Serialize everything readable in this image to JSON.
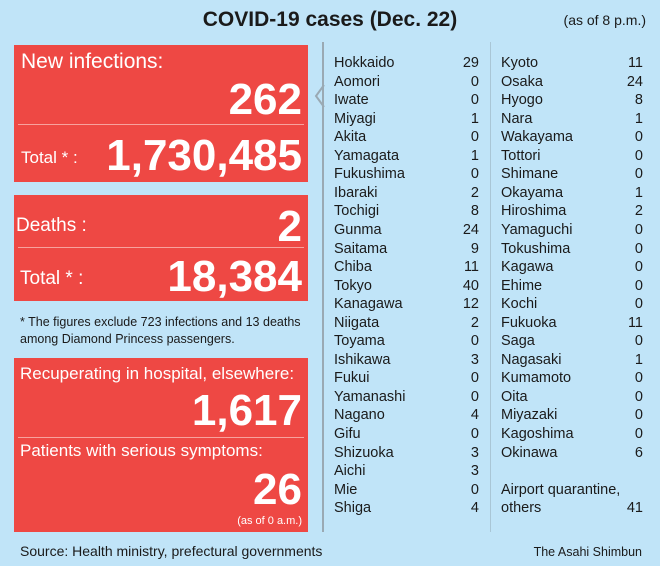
{
  "header": {
    "title": "COVID-19 cases (Dec. 22)",
    "as_of": "(as of 8 p.m.)"
  },
  "infections": {
    "label": "New infections:",
    "new": "262",
    "total_label": "Total * :",
    "total": "1,730,485"
  },
  "deaths": {
    "label": "Deaths :",
    "new": "2",
    "total_label": "Total * :",
    "total": "18,384"
  },
  "footnote": "* The figures exclude 723 infections and 13 deaths among Diamond Princess passengers.",
  "recovering": {
    "label": "Recuperating in hospital, elsewhere:",
    "value": "1,617",
    "serious_label": "Patients with serious symptoms:",
    "serious_value": "26",
    "serious_as_of": "(as of 0 a.m.)"
  },
  "prefectures_left": [
    {
      "name": "Hokkaido",
      "value": "29"
    },
    {
      "name": "Aomori",
      "value": "0"
    },
    {
      "name": "Iwate",
      "value": "0"
    },
    {
      "name": "Miyagi",
      "value": "1"
    },
    {
      "name": "Akita",
      "value": "0"
    },
    {
      "name": "Yamagata",
      "value": "1"
    },
    {
      "name": "Fukushima",
      "value": "0"
    },
    {
      "name": "Ibaraki",
      "value": "2"
    },
    {
      "name": "Tochigi",
      "value": "8"
    },
    {
      "name": "Gunma",
      "value": "24"
    },
    {
      "name": "Saitama",
      "value": "9"
    },
    {
      "name": "Chiba",
      "value": "11"
    },
    {
      "name": "Tokyo",
      "value": "40"
    },
    {
      "name": "Kanagawa",
      "value": "12"
    },
    {
      "name": "Niigata",
      "value": "2"
    },
    {
      "name": "Toyama",
      "value": "0"
    },
    {
      "name": "Ishikawa",
      "value": "3"
    },
    {
      "name": "Fukui",
      "value": "0"
    },
    {
      "name": "Yamanashi",
      "value": "0"
    },
    {
      "name": "Nagano",
      "value": "4"
    },
    {
      "name": "Gifu",
      "value": "0"
    },
    {
      "name": "Shizuoka",
      "value": "3"
    },
    {
      "name": "Aichi",
      "value": "3"
    },
    {
      "name": "Mie",
      "value": "0"
    },
    {
      "name": "Shiga",
      "value": "4"
    }
  ],
  "prefectures_right": [
    {
      "name": "Kyoto",
      "value": "11"
    },
    {
      "name": "Osaka",
      "value": "24"
    },
    {
      "name": "Hyogo",
      "value": "8"
    },
    {
      "name": "Nara",
      "value": "1"
    },
    {
      "name": "Wakayama",
      "value": "0"
    },
    {
      "name": "Tottori",
      "value": "0"
    },
    {
      "name": "Shimane",
      "value": "0"
    },
    {
      "name": "Okayama",
      "value": "1"
    },
    {
      "name": "Hiroshima",
      "value": "2"
    },
    {
      "name": "Yamaguchi",
      "value": "0"
    },
    {
      "name": "Tokushima",
      "value": "0"
    },
    {
      "name": "Kagawa",
      "value": "0"
    },
    {
      "name": "Ehime",
      "value": "0"
    },
    {
      "name": "Kochi",
      "value": "0"
    },
    {
      "name": "Fukuoka",
      "value": "11"
    },
    {
      "name": "Saga",
      "value": "0"
    },
    {
      "name": "Nagasaki",
      "value": "1"
    },
    {
      "name": "Kumamoto",
      "value": "0"
    },
    {
      "name": "Oita",
      "value": "0"
    },
    {
      "name": "Miyazaki",
      "value": "0"
    },
    {
      "name": "Kagoshima",
      "value": "0"
    },
    {
      "name": "Okinawa",
      "value": "6"
    }
  ],
  "airport": {
    "label1": "Airport quarantine,",
    "label2": "others",
    "value": "41"
  },
  "footer": {
    "source": "Source: Health ministry, prefectural governments",
    "credit": "The Asahi Shimbun"
  },
  "colors": {
    "background": "#c0e4f8",
    "panel_red": "#ee4844"
  }
}
